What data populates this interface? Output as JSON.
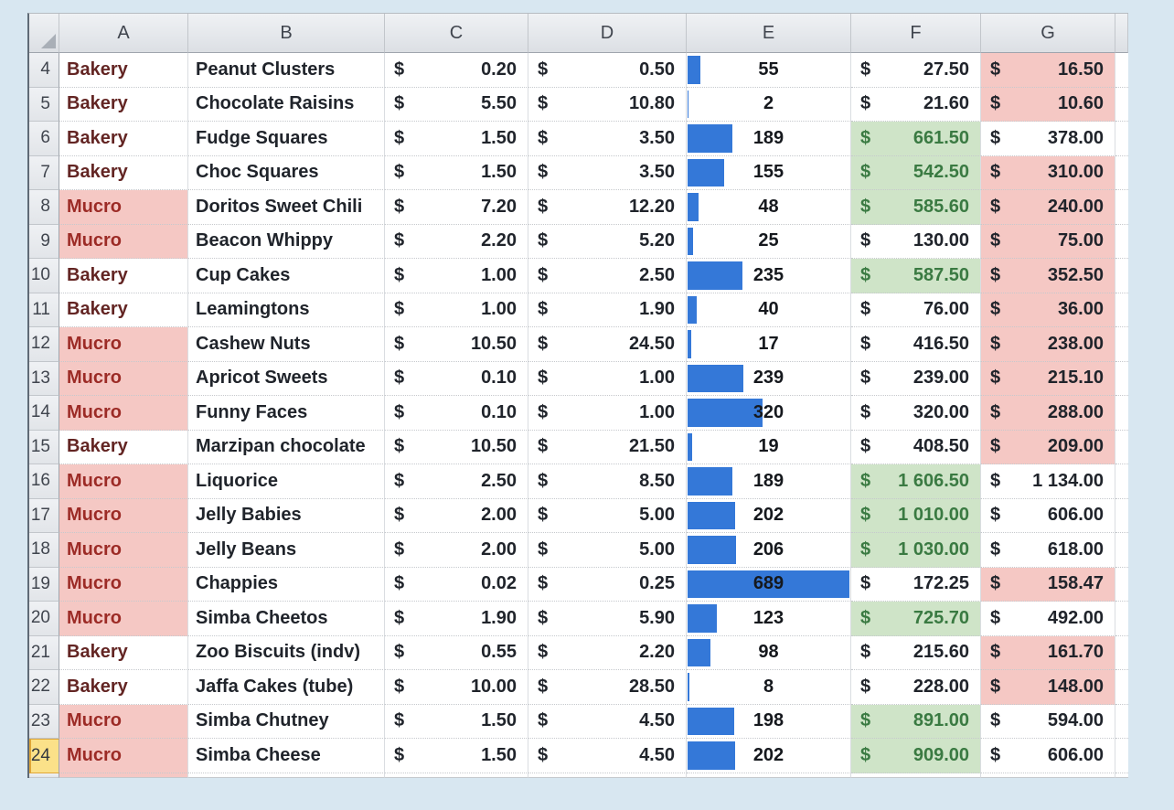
{
  "sheet": {
    "corner_label": "",
    "columns": [
      "A",
      "B",
      "C",
      "D",
      "E",
      "F",
      "G"
    ],
    "currency": "$",
    "data_bar": {
      "column": "E",
      "max": 689
    },
    "colors": {
      "page_bg": "#d8e7f1",
      "bar_blue": "#3478d8",
      "pink_fill": "#f5c8c4",
      "green_fill": "#cfe4c8",
      "green_text": "#3a7a42",
      "bakery_text": "#632523",
      "mucro_text": "#9c2b26",
      "selected_row_header_bg": "#fbe189",
      "selected_row_header_border": "#dfa637"
    },
    "rows": [
      {
        "num": "4",
        "category": "Bakery",
        "product": "Peanut Clusters",
        "unit_cost": "0.20",
        "price": "0.50",
        "qty": 55,
        "total": "27.50",
        "total_green": false,
        "margin": "16.50",
        "margin_pink": true,
        "selected": false
      },
      {
        "num": "5",
        "category": "Bakery",
        "product": "Chocolate Raisins",
        "unit_cost": "5.50",
        "price": "10.80",
        "qty": 2,
        "total": "21.60",
        "total_green": false,
        "margin": "10.60",
        "margin_pink": true,
        "selected": false
      },
      {
        "num": "6",
        "category": "Bakery",
        "product": "Fudge Squares",
        "unit_cost": "1.50",
        "price": "3.50",
        "qty": 189,
        "total": "661.50",
        "total_green": true,
        "margin": "378.00",
        "margin_pink": false,
        "selected": false
      },
      {
        "num": "7",
        "category": "Bakery",
        "product": "Choc Squares",
        "unit_cost": "1.50",
        "price": "3.50",
        "qty": 155,
        "total": "542.50",
        "total_green": true,
        "margin": "310.00",
        "margin_pink": true,
        "selected": false
      },
      {
        "num": "8",
        "category": "Mucro",
        "product": "Doritos Sweet Chili",
        "unit_cost": "7.20",
        "price": "12.20",
        "qty": 48,
        "total": "585.60",
        "total_green": true,
        "margin": "240.00",
        "margin_pink": true,
        "selected": false
      },
      {
        "num": "9",
        "category": "Mucro",
        "product": "Beacon Whippy",
        "unit_cost": "2.20",
        "price": "5.20",
        "qty": 25,
        "total": "130.00",
        "total_green": false,
        "margin": "75.00",
        "margin_pink": true,
        "selected": false
      },
      {
        "num": "10",
        "category": "Bakery",
        "product": "Cup Cakes",
        "unit_cost": "1.00",
        "price": "2.50",
        "qty": 235,
        "total": "587.50",
        "total_green": true,
        "margin": "352.50",
        "margin_pink": true,
        "selected": false
      },
      {
        "num": "11",
        "category": "Bakery",
        "product": "Leamingtons",
        "unit_cost": "1.00",
        "price": "1.90",
        "qty": 40,
        "total": "76.00",
        "total_green": false,
        "margin": "36.00",
        "margin_pink": true,
        "selected": false
      },
      {
        "num": "12",
        "category": "Mucro",
        "product": "Cashew Nuts",
        "unit_cost": "10.50",
        "price": "24.50",
        "qty": 17,
        "total": "416.50",
        "total_green": false,
        "margin": "238.00",
        "margin_pink": true,
        "selected": false
      },
      {
        "num": "13",
        "category": "Mucro",
        "product": "Apricot Sweets",
        "unit_cost": "0.10",
        "price": "1.00",
        "qty": 239,
        "total": "239.00",
        "total_green": false,
        "margin": "215.10",
        "margin_pink": true,
        "selected": false
      },
      {
        "num": "14",
        "category": "Mucro",
        "product": "Funny Faces",
        "unit_cost": "0.10",
        "price": "1.00",
        "qty": 320,
        "total": "320.00",
        "total_green": false,
        "margin": "288.00",
        "margin_pink": true,
        "selected": false
      },
      {
        "num": "15",
        "category": "Bakery",
        "product": "Marzipan chocolate",
        "unit_cost": "10.50",
        "price": "21.50",
        "qty": 19,
        "total": "408.50",
        "total_green": false,
        "margin": "209.00",
        "margin_pink": true,
        "selected": false
      },
      {
        "num": "16",
        "category": "Mucro",
        "product": "Liquorice",
        "unit_cost": "2.50",
        "price": "8.50",
        "qty": 189,
        "total": "1 606.50",
        "total_green": true,
        "margin": "1 134.00",
        "margin_pink": false,
        "selected": false
      },
      {
        "num": "17",
        "category": "Mucro",
        "product": "Jelly Babies",
        "unit_cost": "2.00",
        "price": "5.00",
        "qty": 202,
        "total": "1 010.00",
        "total_green": true,
        "margin": "606.00",
        "margin_pink": false,
        "selected": false
      },
      {
        "num": "18",
        "category": "Mucro",
        "product": "Jelly Beans",
        "unit_cost": "2.00",
        "price": "5.00",
        "qty": 206,
        "total": "1 030.00",
        "total_green": true,
        "margin": "618.00",
        "margin_pink": false,
        "selected": false
      },
      {
        "num": "19",
        "category": "Mucro",
        "product": "Chappies",
        "unit_cost": "0.02",
        "price": "0.25",
        "qty": 689,
        "total": "172.25",
        "total_green": false,
        "margin": "158.47",
        "margin_pink": true,
        "selected": false
      },
      {
        "num": "20",
        "category": "Mucro",
        "product": "Simba Cheetos",
        "unit_cost": "1.90",
        "price": "5.90",
        "qty": 123,
        "total": "725.70",
        "total_green": true,
        "margin": "492.00",
        "margin_pink": false,
        "selected": false
      },
      {
        "num": "21",
        "category": "Bakery",
        "product": "Zoo Biscuits (indv)",
        "unit_cost": "0.55",
        "price": "2.20",
        "qty": 98,
        "total": "215.60",
        "total_green": false,
        "margin": "161.70",
        "margin_pink": true,
        "selected": false
      },
      {
        "num": "22",
        "category": "Bakery",
        "product": "Jaffa Cakes (tube)",
        "unit_cost": "10.00",
        "price": "28.50",
        "qty": 8,
        "total": "228.00",
        "total_green": false,
        "margin": "148.00",
        "margin_pink": true,
        "selected": false
      },
      {
        "num": "23",
        "category": "Mucro",
        "product": "Simba Chutney",
        "unit_cost": "1.50",
        "price": "4.50",
        "qty": 198,
        "total": "891.00",
        "total_green": true,
        "margin": "594.00",
        "margin_pink": false,
        "selected": false
      },
      {
        "num": "24",
        "category": "Mucro",
        "product": "Simba Cheese",
        "unit_cost": "1.50",
        "price": "4.50",
        "qty": 202,
        "total": "909.00",
        "total_green": true,
        "margin": "606.00",
        "margin_pink": false,
        "selected": true
      }
    ]
  }
}
